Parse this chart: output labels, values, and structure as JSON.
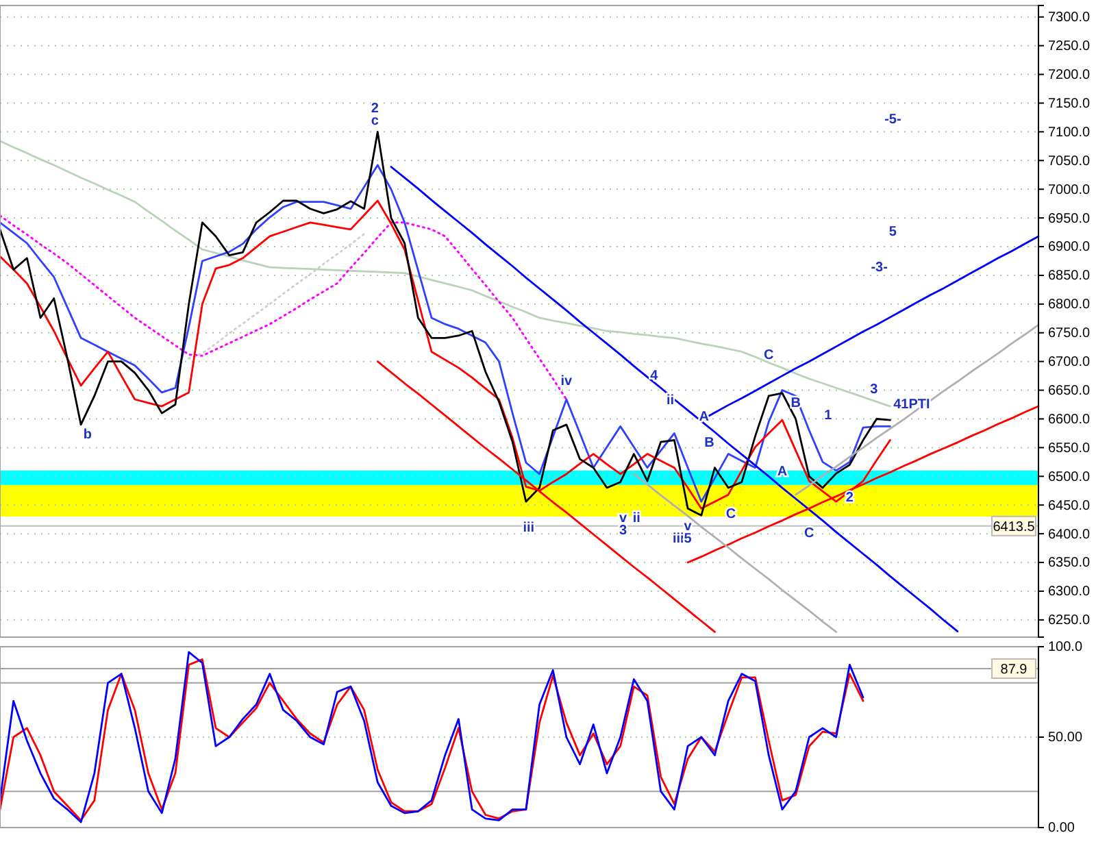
{
  "chart_data": [
    {
      "type": "line",
      "ylim": [
        6220,
        7320
      ],
      "tick_labels": "y",
      "grid": "y",
      "categories": [
        null,
        null,
        null,
        null,
        null,
        null,
        null,
        null,
        null,
        null,
        null,
        null,
        null,
        null,
        null,
        null,
        null,
        null,
        null,
        null,
        null,
        null,
        null,
        null,
        null,
        null,
        null,
        null,
        null,
        null,
        null,
        null,
        null,
        null,
        null,
        null,
        null,
        null,
        null,
        null,
        null,
        null,
        null,
        null,
        null,
        null,
        null,
        null,
        null,
        null,
        null,
        null,
        null,
        null,
        null,
        null,
        null,
        null,
        null,
        null,
        null,
        null,
        null,
        null,
        null,
        null,
        null,
        null,
        null,
        null,
        null,
        null,
        null,
        null,
        null,
        null,
        null,
        null
      ],
      "yticks": [
        {
          "value": 6250,
          "label": "6250.0"
        },
        {
          "value": 6300,
          "label": "6300.0"
        },
        {
          "value": 6350,
          "label": "6350.0"
        },
        {
          "value": 6400,
          "label": "6400.0"
        },
        {
          "value": 6450,
          "label": "6450.0"
        },
        {
          "value": 6500,
          "label": "6500.0"
        },
        {
          "value": 6550,
          "label": "6550.0"
        },
        {
          "value": 6600,
          "label": "6600.0"
        },
        {
          "value": 6650,
          "label": "6650.0"
        },
        {
          "value": 6700,
          "label": "6700.0"
        },
        {
          "value": 6750,
          "label": "6750.0"
        },
        {
          "value": 6800,
          "label": "6800.0"
        },
        {
          "value": 6850,
          "label": "6850.0"
        },
        {
          "value": 6900,
          "label": "6900.0"
        },
        {
          "value": 6950,
          "label": "6950.0"
        },
        {
          "value": 7000,
          "label": "7000.0"
        },
        {
          "value": 7050,
          "label": "7050.0"
        },
        {
          "value": 7100,
          "label": "7100.0"
        },
        {
          "value": 7150,
          "label": "7150.0"
        },
        {
          "value": 7200,
          "label": "7200.0"
        },
        {
          "value": 7250,
          "label": "7250.0"
        },
        {
          "value": 7300,
          "label": "7300.0"
        }
      ],
      "bands": [
        {
          "axis": "y",
          "from": 6430,
          "to": 6485,
          "color": "#ffff00"
        },
        {
          "axis": "y",
          "from": 6485,
          "to": 6510,
          "color": "#00ffff"
        }
      ],
      "ref_lines": [
        {
          "axis": "y",
          "value": 6413.5,
          "label": "6413.5",
          "color": "#c0c0c0"
        }
      ],
      "series": [
        {
          "color": "#b8d4b8",
          "values": [
            7084,
            7073,
            7063,
            7052,
            7042,
            7031,
            7020,
            7010,
            6999,
            6989,
            6978,
            6961,
            6945,
            6928,
            6912,
            6895,
            6889,
            6883,
            6876,
            6870,
            6864,
            6863,
            6862,
            6861,
            6860,
            6859,
            6858,
            6857,
            6856,
            6855,
            6854,
            6848,
            6842,
            6836,
            6830,
            6824,
            6814,
            6805,
            6795,
            6786,
            6776,
            6771,
            6767,
            6762,
            6758,
            6753,
            6751,
            6748,
            6746,
            6743,
            6741,
            6736,
            6731,
            6727,
            6722,
            6717,
            6708,
            6698,
            6689,
            6679,
            6670,
            6662,
            6654,
            6646,
            6638,
            6630,
            6622,
            null,
            null,
            null,
            null,
            null,
            null,
            null,
            null,
            null,
            null,
            null
          ]
        },
        {
          "color": "#ff00ff",
          "line_style": "dotted",
          "values": [
            6954,
            6937,
            6921,
            6904,
            6888,
            6871,
            6852,
            6833,
            6814,
            6795,
            6776,
            6760,
            6744,
            6728,
            6712,
            6710,
            6721,
            6732,
            6743,
            6754,
            6765,
            6779,
            6793,
            6808,
            6822,
            6836,
            6863,
            6889,
            6916,
            6942,
            6942,
            6936,
            6930,
            6918,
            6890,
            6861,
            6833,
            6804,
            6776,
            6740,
            6705,
            6670,
            6634,
            null,
            null,
            null,
            null,
            null,
            null,
            null,
            null,
            null,
            null,
            null,
            null,
            null,
            null,
            null,
            null,
            null,
            null,
            null,
            null,
            null,
            null,
            null,
            null,
            null,
            null,
            null,
            null,
            null,
            null,
            null,
            null,
            null,
            null,
            null
          ]
        },
        {
          "color": "#d0d0d0",
          "line_style": "dotted",
          "values": [
            null,
            null,
            null,
            null,
            null,
            null,
            null,
            null,
            null,
            null,
            null,
            null,
            null,
            null,
            6705,
            6714,
            6731,
            6749,
            6766,
            6783,
            6800,
            6818,
            6835,
            6852,
            6870,
            6887,
            6904,
            6922,
            null,
            null,
            null,
            null,
            null,
            null,
            null,
            null,
            null,
            null,
            null,
            null,
            null,
            null,
            null,
            null,
            null,
            null,
            null,
            null,
            null,
            null,
            null,
            null,
            null,
            null,
            null,
            null,
            null,
            null,
            null,
            null,
            null,
            null,
            null,
            null,
            null,
            null,
            null,
            null,
            null,
            null,
            null,
            null,
            null,
            null,
            null,
            null,
            null,
            null
          ]
        },
        {
          "color": "#3040ff",
          "values": [
            6942,
            6924,
            6906,
            6876,
            6847,
            6794,
            6741,
            6729,
            6717,
            6705,
            6693,
            6670,
            6646,
            6654,
            6760,
            6875,
            6883,
            6891,
            6905,
            6930,
            6951,
            6969,
            6978,
            6978,
            6978,
            6972,
            6966,
            7004,
            7042,
            7000,
            6942,
            6859,
            6776,
            6765,
            6757,
            6745,
            6733,
            6700,
            6610,
            6524,
            6504,
            6569,
            6634,
            6575,
            6515,
            6551,
            6587,
            6551,
            6515,
            6545,
            6575,
            6515,
            6456,
            6497,
            6539,
            6527,
            6515,
            6595,
            6650,
            6640,
            6580,
            6525,
            6510,
            6525,
            6585,
            6587,
            6587,
            null,
            null,
            null,
            null,
            null,
            null,
            null,
            null,
            null,
            null,
            null
          ]
        },
        {
          "color": "#ff0000",
          "values": [
            6883,
            6860,
            6836,
            6795,
            6753,
            6705,
            6658,
            6688,
            6717,
            6675,
            6634,
            6628,
            6622,
            6634,
            6646,
            6800,
            6862,
            6868,
            6880,
            6899,
            6918,
            6926,
            6934,
            6942,
            6938,
            6934,
            6930,
            6955,
            6980,
            6940,
            6895,
            6806,
            6717,
            6703,
            6689,
            6672,
            6653,
            6634,
            6567,
            6482,
            6475,
            6490,
            6504,
            6522,
            6539,
            6521,
            6504,
            6521,
            6539,
            6527,
            6515,
            6480,
            6444,
            6456,
            6468,
            6510,
            6551,
            6575,
            6598,
            6545,
            6492,
            6474,
            6456,
            6474,
            6492,
            6528,
            6563,
            null,
            null,
            null,
            null,
            null,
            null,
            null,
            null,
            null,
            null,
            null
          ]
        },
        {
          "color": "#000000",
          "values": [
            6930,
            6860,
            6880,
            6776,
            6810,
            6705,
            6590,
            6640,
            6700,
            6700,
            6680,
            6650,
            6610,
            6625,
            6800,
            6942,
            6918,
            6885,
            6890,
            6942,
            6960,
            6980,
            6980,
            6966,
            6958,
            6965,
            6979,
            6966,
            7100,
            6950,
            6906,
            6776,
            6741,
            6741,
            6745,
            6753,
            6682,
            6630,
            6560,
            6456,
            6480,
            6580,
            6590,
            6530,
            6515,
            6480,
            6490,
            6539,
            6492,
            6560,
            6563,
            6444,
            6432,
            6515,
            6480,
            6490,
            6570,
            6640,
            6645,
            6600,
            6500,
            6480,
            6505,
            6520,
            6563,
            6600,
            6598,
            null,
            null,
            null,
            null,
            null,
            null,
            null,
            null,
            null,
            null,
            null
          ]
        },
        {
          "color": "#0000ff",
          "values": [
            null,
            null,
            null,
            null,
            null,
            null,
            null,
            null,
            null,
            null,
            null,
            null,
            null,
            null,
            null,
            null,
            null,
            null,
            null,
            null,
            null,
            null,
            null,
            null,
            null,
            null,
            null,
            null,
            null,
            7039,
            7020,
            7001,
            6981,
            6962,
            6943,
            6924,
            6904,
            6885,
            6866,
            6846,
            6827,
            6808,
            6789,
            6769,
            6750,
            6731,
            6712,
            6692,
            6673,
            6654,
            6634,
            6615,
            6596,
            6577,
            6557,
            6538,
            6519,
            6500,
            6480,
            6461,
            6442,
            6423,
            6403,
            6384,
            6365,
            6346,
            6326,
            6307,
            6288,
            6269,
            6249,
            6230,
            null,
            null,
            null,
            null,
            null,
            null
          ]
        },
        {
          "color": "#0000ff",
          "values": [
            null,
            null,
            null,
            null,
            null,
            null,
            null,
            null,
            null,
            null,
            null,
            null,
            null,
            null,
            null,
            null,
            null,
            null,
            null,
            null,
            null,
            null,
            null,
            null,
            null,
            null,
            null,
            null,
            null,
            null,
            null,
            null,
            null,
            null,
            null,
            null,
            null,
            null,
            null,
            null,
            null,
            null,
            null,
            null,
            null,
            null,
            null,
            null,
            null,
            null,
            null,
            null,
            6598,
            6611,
            6624,
            6636,
            6649,
            6662,
            6675,
            6688,
            6700,
            6713,
            6726,
            6739,
            6752,
            6764,
            6777,
            6790,
            6803,
            6816,
            6828,
            6841,
            6854,
            6867,
            6880,
            6892,
            6905,
            6918
          ]
        },
        {
          "color": "#ff0000",
          "values": [
            null,
            null,
            null,
            null,
            null,
            null,
            null,
            null,
            null,
            null,
            null,
            null,
            null,
            null,
            null,
            null,
            null,
            null,
            null,
            null,
            null,
            null,
            null,
            null,
            null,
            null,
            null,
            null,
            6700,
            6681,
            6662,
            6644,
            6625,
            6606,
            6587,
            6568,
            6549,
            6531,
            6512,
            6493,
            6474,
            6455,
            6437,
            6418,
            6399,
            6380,
            6361,
            6342,
            6324,
            6305,
            6286,
            6267,
            6248,
            6229,
            null,
            null,
            null,
            null,
            null,
            null,
            null,
            null,
            null,
            null,
            null,
            null,
            null,
            null,
            null,
            null,
            null,
            null,
            null,
            null,
            null,
            null,
            null,
            null
          ]
        },
        {
          "color": "#ff0000",
          "values": [
            null,
            null,
            null,
            null,
            null,
            null,
            null,
            null,
            null,
            null,
            null,
            null,
            null,
            null,
            null,
            null,
            null,
            null,
            null,
            null,
            null,
            null,
            null,
            null,
            null,
            null,
            null,
            null,
            null,
            null,
            null,
            null,
            null,
            null,
            null,
            null,
            null,
            null,
            null,
            null,
            null,
            null,
            null,
            null,
            null,
            null,
            null,
            null,
            null,
            null,
            null,
            6350,
            6360,
            6371,
            6381,
            6392,
            6402,
            6413,
            6423,
            6434,
            6444,
            6455,
            6465,
            6476,
            6486,
            6497,
            6507,
            6518,
            6528,
            6539,
            6549,
            6559,
            6570,
            6580,
            6591,
            6601,
            6612,
            6622
          ]
        },
        {
          "color": "#b0b0b0",
          "values": [
            null,
            null,
            null,
            null,
            null,
            null,
            null,
            null,
            null,
            null,
            null,
            null,
            null,
            null,
            null,
            null,
            null,
            null,
            null,
            null,
            null,
            null,
            null,
            null,
            null,
            null,
            null,
            null,
            null,
            null,
            null,
            null,
            null,
            null,
            null,
            null,
            null,
            null,
            null,
            null,
            null,
            null,
            null,
            null,
            null,
            null,
            null,
            6504,
            6486,
            6467,
            6449,
            6431,
            6412,
            6394,
            6376,
            6357,
            6339,
            6321,
            6302,
            6284,
            6266,
            6247,
            6229,
            null,
            null,
            null,
            null,
            null,
            null,
            null,
            null,
            null,
            null,
            null,
            null,
            null,
            null,
            null
          ]
        },
        {
          "color": "#b0b0b0",
          "values": [
            null,
            null,
            null,
            null,
            null,
            null,
            null,
            null,
            null,
            null,
            null,
            null,
            null,
            null,
            null,
            null,
            null,
            null,
            null,
            null,
            null,
            null,
            null,
            null,
            null,
            null,
            null,
            null,
            null,
            null,
            null,
            null,
            null,
            null,
            null,
            null,
            null,
            null,
            null,
            null,
            null,
            null,
            null,
            null,
            null,
            null,
            null,
            null,
            null,
            null,
            null,
            null,
            null,
            null,
            null,
            null,
            null,
            null,
            null,
            6468,
            6484,
            6501,
            6517,
            6534,
            6550,
            6567,
            6583,
            6599,
            6616,
            6632,
            6649,
            6665,
            6682,
            6698,
            6714,
            6731,
            6747,
            6764
          ]
        }
      ],
      "annotations": [
        "2",
        "c",
        "b",
        "iv",
        "iii",
        "v",
        "3",
        "ii",
        "4",
        "ii",
        "iii",
        "v",
        "5",
        "A",
        "B",
        "C",
        "C",
        "B",
        "A",
        "C",
        "1",
        "2",
        "3",
        "41PTI",
        "-5-",
        "5",
        "-3-"
      ]
    },
    {
      "type": "line",
      "ylim": [
        0,
        100
      ],
      "tick_labels": "y",
      "categories": [
        null,
        null,
        null,
        null,
        null,
        null,
        null,
        null,
        null,
        null,
        null,
        null,
        null,
        null,
        null,
        null,
        null,
        null,
        null,
        null,
        null,
        null,
        null,
        null,
        null,
        null,
        null,
        null,
        null,
        null,
        null,
        null,
        null,
        null,
        null,
        null,
        null,
        null,
        null,
        null,
        null,
        null,
        null,
        null,
        null,
        null,
        null,
        null,
        null,
        null,
        null,
        null,
        null,
        null,
        null,
        null,
        null,
        null,
        null,
        null,
        null,
        null,
        null,
        null,
        null,
        null,
        null,
        null,
        null,
        null,
        null,
        null,
        null,
        null,
        null,
        null,
        null,
        null
      ],
      "yticks": [
        {
          "value": 0,
          "label": "0.00"
        },
        {
          "value": 50,
          "label": "50.00"
        },
        {
          "value": 100,
          "label": "100.0"
        }
      ],
      "ref_lines": [
        {
          "axis": "y",
          "value": 50,
          "color": "#9fd09f",
          "line_style": "dotted"
        },
        {
          "axis": "y",
          "value": 80,
          "color": "#a0a0a0"
        },
        {
          "axis": "y",
          "value": 20,
          "color": "#a0a0a0"
        },
        {
          "axis": "y",
          "value": 87.9,
          "label": "87.9",
          "color": "#a0a0a0"
        }
      ],
      "series": [
        {
          "color": "#ff0000",
          "values": [
            10,
            50,
            55,
            40,
            20,
            12,
            4,
            15,
            65,
            85,
            65,
            30,
            10,
            30,
            90,
            93,
            55,
            50,
            58,
            66,
            80,
            70,
            60,
            52,
            47,
            68,
            78,
            65,
            32,
            14,
            9,
            9,
            13,
            33,
            55,
            20,
            7,
            5,
            9,
            10,
            58,
            84,
            58,
            40,
            52,
            35,
            45,
            78,
            73,
            28,
            13,
            38,
            50,
            42,
            63,
            83,
            83,
            48,
            15,
            18,
            45,
            53,
            52,
            85,
            70,
            null,
            null,
            null,
            null,
            null,
            null,
            null,
            null,
            null,
            null,
            null,
            null,
            null
          ]
        },
        {
          "color": "#0000ff",
          "values": [
            15,
            70,
            48,
            30,
            16,
            10,
            3,
            30,
            80,
            85,
            55,
            20,
            8,
            38,
            97,
            91,
            45,
            50,
            60,
            68,
            85,
            65,
            59,
            50,
            46,
            75,
            78,
            59,
            25,
            12,
            8,
            9,
            15,
            40,
            60,
            10,
            5,
            4,
            10,
            10,
            68,
            87,
            50,
            35,
            57,
            30,
            50,
            82,
            70,
            20,
            10,
            45,
            50,
            40,
            70,
            85,
            81,
            40,
            10,
            20,
            50,
            55,
            50,
            90,
            72,
            null,
            null,
            null,
            null,
            null,
            null,
            null,
            null,
            null,
            null,
            null,
            null,
            null
          ]
        }
      ]
    }
  ]
}
